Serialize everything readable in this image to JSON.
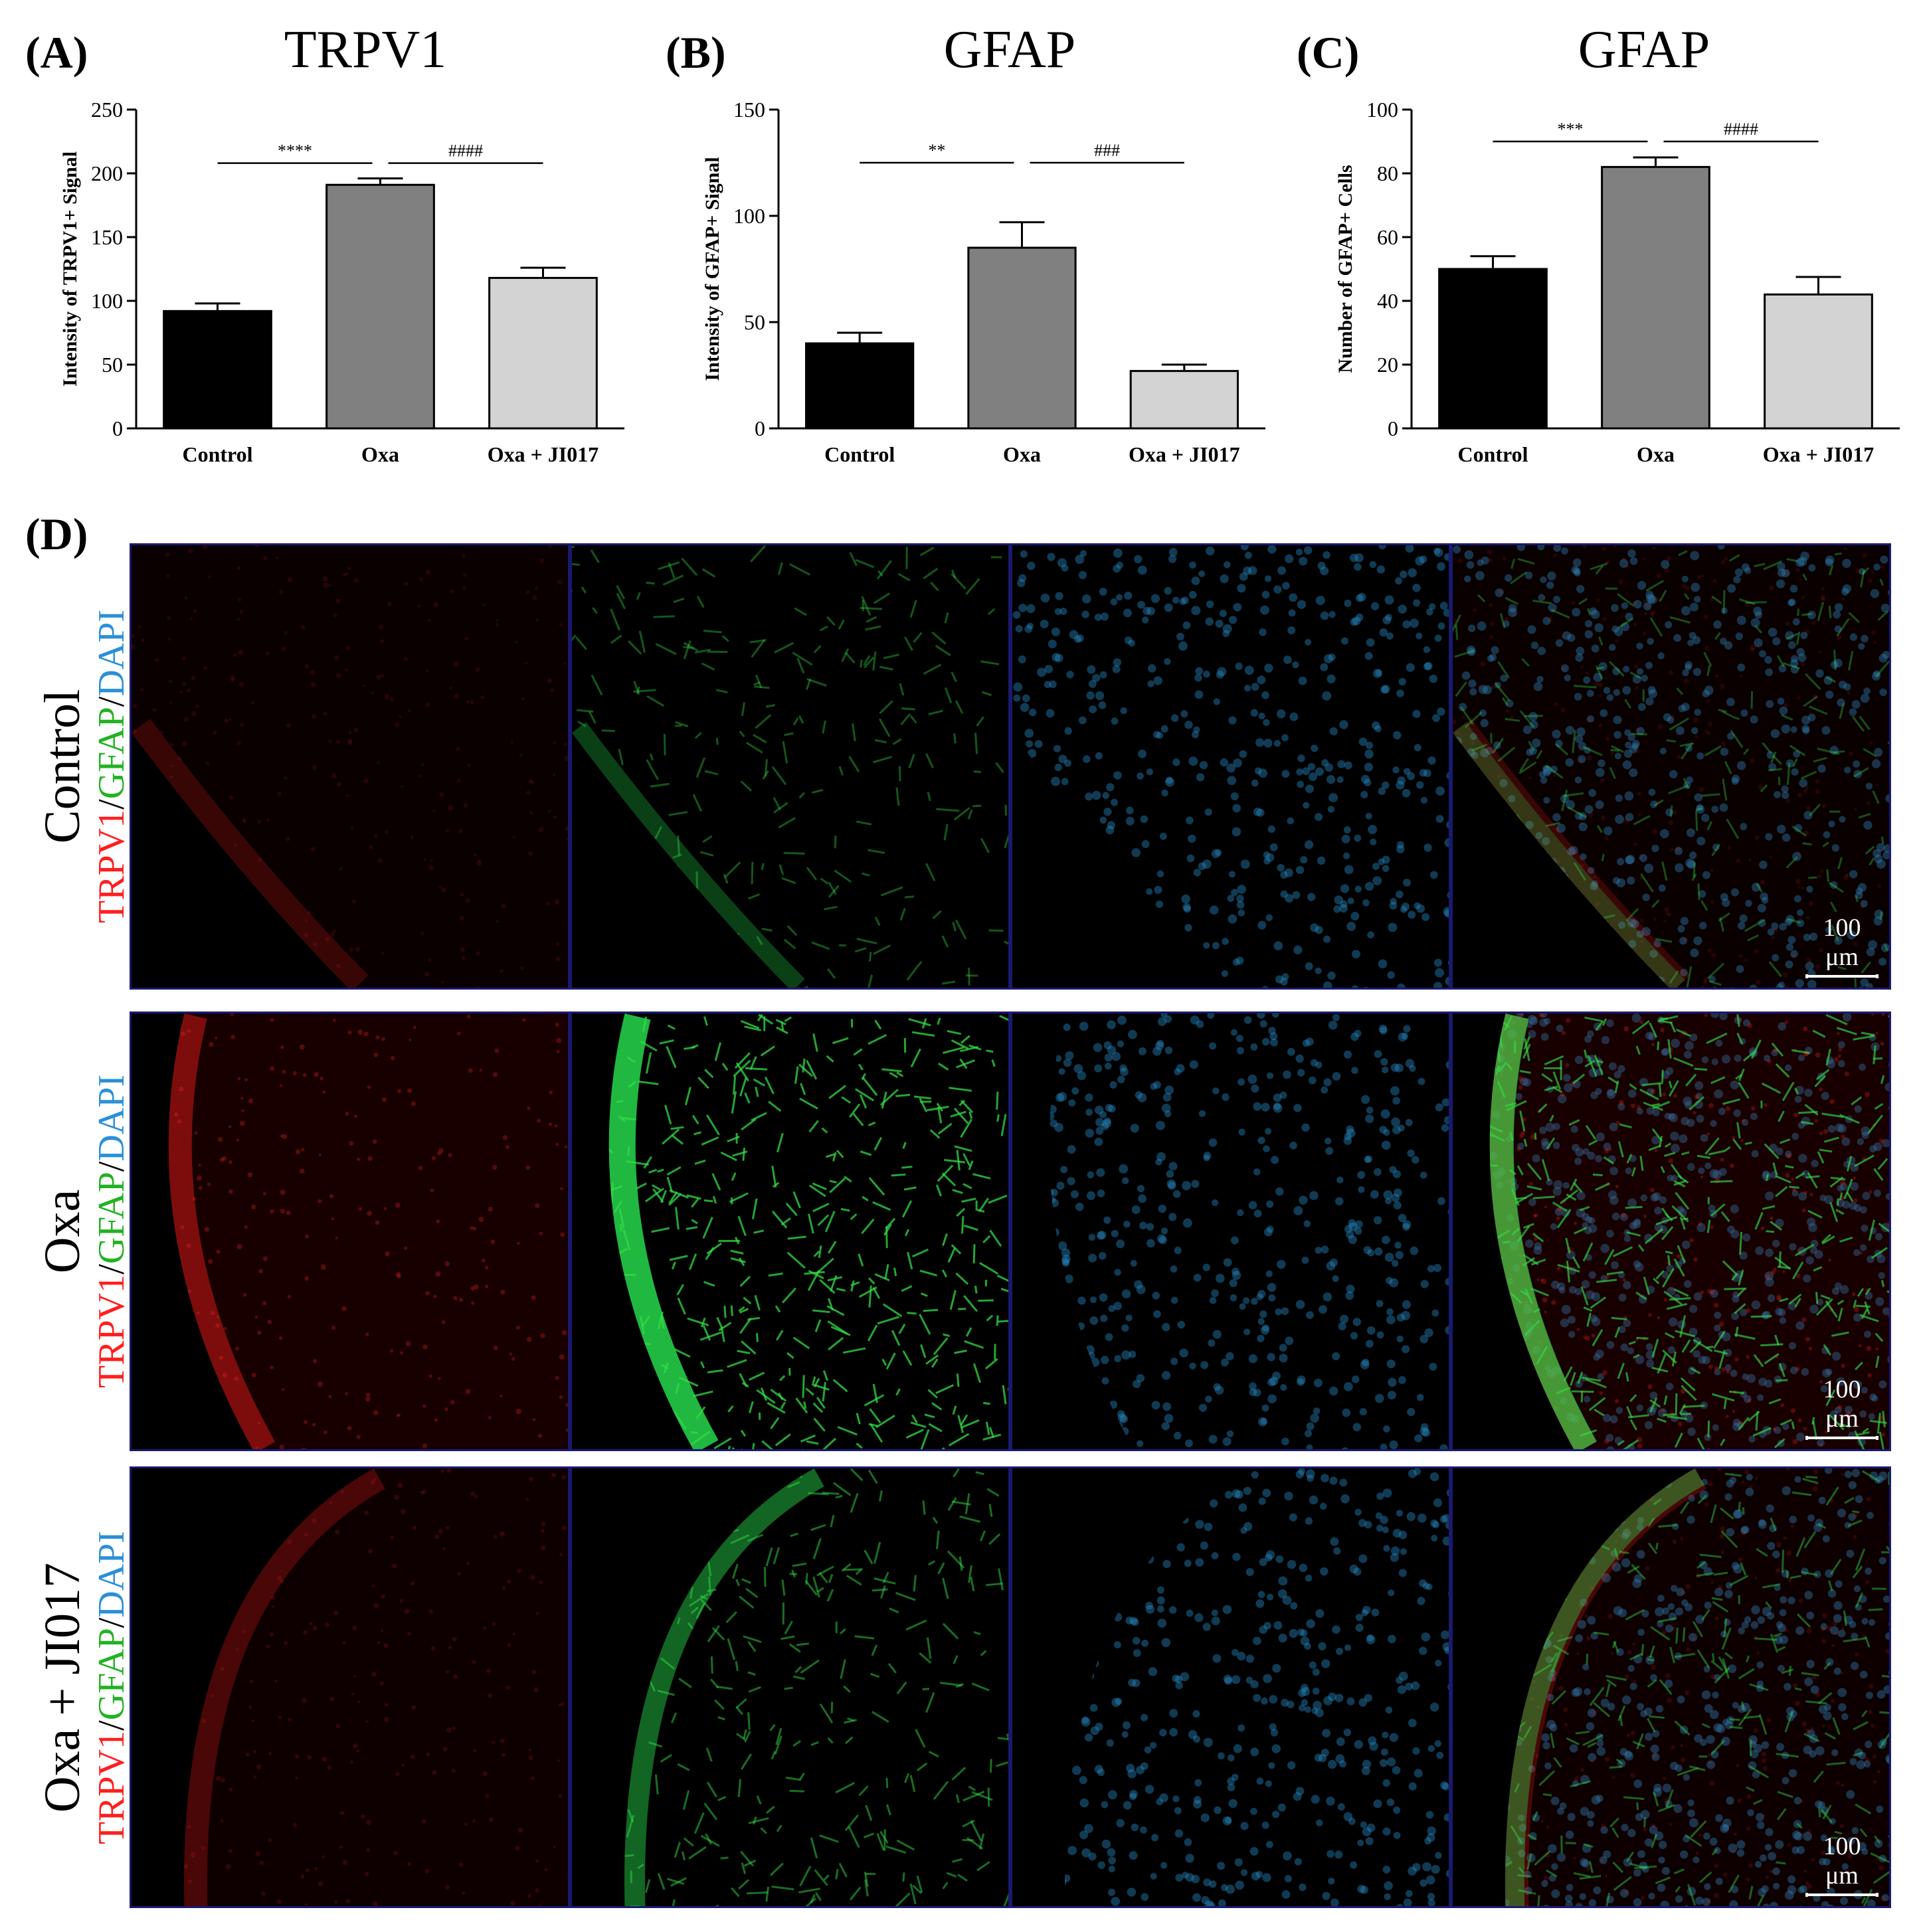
{
  "panels": {
    "A": "(A)",
    "B": "(B)",
    "C": "(C)",
    "D": "(D)"
  },
  "chart_data": [
    {
      "type": "bar",
      "title": "TRPV1",
      "ylabel": "Intensity of TRPV1+ Signal",
      "xlabel": "",
      "categories": [
        "Control",
        "Oxa",
        "Oxa + JI017"
      ],
      "values": [
        92,
        191,
        118
      ],
      "errors": [
        6,
        5,
        8
      ],
      "colors": [
        "#000000",
        "#808080",
        "#d3d3d3"
      ],
      "ylim": [
        0,
        250
      ],
      "yticks": [
        0,
        50,
        100,
        150,
        200,
        250
      ],
      "annotations": [
        {
          "from": 0,
          "to": 1,
          "y": 208,
          "label": "****"
        },
        {
          "from": 1,
          "to": 2,
          "y": 208,
          "label": "####"
        }
      ]
    },
    {
      "type": "bar",
      "title": "GFAP",
      "ylabel": "Intensity of GFAP+ Signal",
      "xlabel": "",
      "categories": [
        "Control",
        "Oxa",
        "Oxa + JI017"
      ],
      "values": [
        40,
        85,
        27
      ],
      "errors": [
        5,
        12,
        3
      ],
      "colors": [
        "#000000",
        "#808080",
        "#d3d3d3"
      ],
      "ylim": [
        0,
        150
      ],
      "yticks": [
        0,
        50,
        100,
        150
      ],
      "annotations": [
        {
          "from": 0,
          "to": 1,
          "y": 125,
          "label": "**"
        },
        {
          "from": 1,
          "to": 2,
          "y": 125,
          "label": "###"
        }
      ]
    },
    {
      "type": "bar",
      "title": "GFAP",
      "ylabel": "Number of GFAP+ Cells",
      "xlabel": "",
      "categories": [
        "Control",
        "Oxa",
        "Oxa + JI017"
      ],
      "values": [
        50,
        82,
        42
      ],
      "errors": [
        4,
        3,
        5.5
      ],
      "colors": [
        "#000000",
        "#808080",
        "#d3d3d3"
      ],
      "ylim": [
        0,
        100
      ],
      "yticks": [
        0,
        20,
        40,
        60,
        80,
        100
      ],
      "annotations": [
        {
          "from": 0,
          "to": 1,
          "y": 90,
          "label": "***"
        },
        {
          "from": 1,
          "to": 2,
          "y": 90,
          "label": "####"
        }
      ]
    }
  ],
  "micrographs": {
    "rows": [
      {
        "condition": "Control",
        "stain_red": "TRPV1",
        "sep1": "/",
        "stain_green": "GFAP",
        "sep2": "/",
        "stain_blue": "DAPI",
        "scale": "100 μm"
      },
      {
        "condition": "Oxa",
        "stain_red": "TRPV1",
        "sep1": "/",
        "stain_green": "GFAP",
        "sep2": "/",
        "stain_blue": "DAPI",
        "scale": "100 μm"
      },
      {
        "condition": "Oxa + JI017",
        "stain_red": "TRPV1",
        "sep1": "/",
        "stain_green": "GFAP",
        "sep2": "/",
        "stain_blue": "DAPI",
        "scale": "100 μm"
      }
    ],
    "channels": [
      "red",
      "green",
      "blue",
      "merge"
    ],
    "intensity": [
      {
        "red": 0.35,
        "green": 0.35,
        "blue": 0.6
      },
      {
        "red": 0.8,
        "green": 1.0,
        "blue": 0.6
      },
      {
        "red": 0.45,
        "green": 0.55,
        "blue": 0.6
      }
    ]
  }
}
